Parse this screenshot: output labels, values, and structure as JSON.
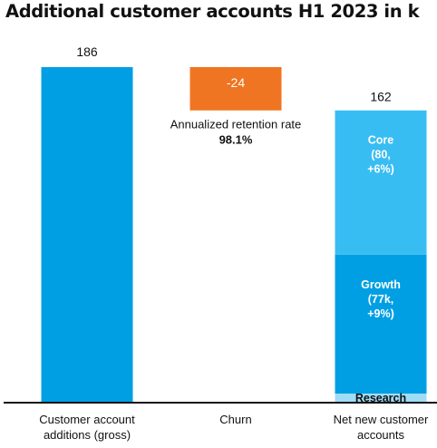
{
  "title": "Additional customer accounts H1 2023 in k",
  "colors": {
    "gross": "#009fe3",
    "churn": "#f07522",
    "core": "#38bdf3",
    "growth": "#009fe3",
    "research": "#9edcf7",
    "axis": "#111111"
  },
  "chart_data": {
    "type": "bar",
    "subtype": "waterfall",
    "categories": [
      [
        "Customer account",
        "additions (gross)"
      ],
      [
        "Churn"
      ],
      [
        "Net new customer",
        "accounts"
      ]
    ],
    "values": [
      186,
      -24,
      162
    ],
    "value_labels": [
      "186",
      "-24",
      "162"
    ],
    "net_segments": [
      {
        "name": "Core",
        "label_lines": [
          "Core",
          "(80,",
          "+6%)"
        ],
        "value": 80
      },
      {
        "name": "Growth",
        "label_lines": [
          "Growth",
          "(77k,",
          "+9%)"
        ],
        "value": 77
      },
      {
        "name": "Research",
        "label_lines": [
          "Research"
        ],
        "value": 5
      }
    ],
    "annotation": {
      "text": "Annualized retention rate",
      "value": "98.1%"
    },
    "ylim": [
      0,
      186
    ],
    "grid": false,
    "legend": "none"
  }
}
